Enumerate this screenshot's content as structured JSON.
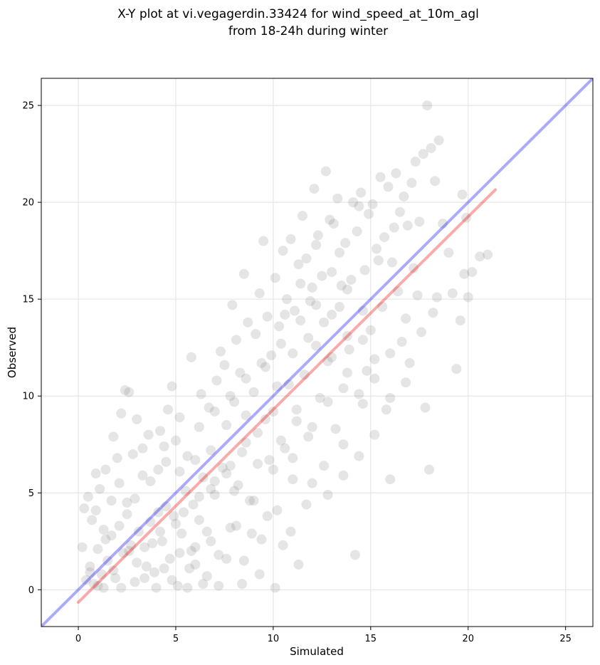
{
  "chart_data": {
    "type": "scatter",
    "title": "X-Y plot at vi.vegagerdin.33424 for wind_speed_at_10m_agl",
    "subtitle": "from 18-24h during winter",
    "xlabel": "Simulated",
    "ylabel": "Observed",
    "xlim": [
      -1.9,
      26.4
    ],
    "ylim": [
      -1.9,
      26.4
    ],
    "xticks": [
      0,
      5,
      10,
      15,
      20,
      25
    ],
    "yticks": [
      0,
      5,
      10,
      15,
      20,
      25
    ],
    "grid": true,
    "reference_line": {
      "color": "#0000ee",
      "x": [
        -1.9,
        26.4
      ],
      "y": [
        -1.9,
        26.4
      ]
    },
    "fit_line": {
      "color": "#ee0000",
      "x": [
        0.0,
        21.4
      ],
      "y": [
        -0.65,
        20.65
      ]
    },
    "point_color": "#7f7f7f",
    "points": [
      [
        0.4,
        0.5
      ],
      [
        0.6,
        1.2
      ],
      [
        0.8,
        0.3
      ],
      [
        1.0,
        2.1
      ],
      [
        1.2,
        0.8
      ],
      [
        0.3,
        4.2
      ],
      [
        0.5,
        4.8
      ],
      [
        0.7,
        3.6
      ],
      [
        0.9,
        6.0
      ],
      [
        1.1,
        5.2
      ],
      [
        1.3,
        0.1
      ],
      [
        1.5,
        1.5
      ],
      [
        1.7,
        2.8
      ],
      [
        1.9,
        0.6
      ],
      [
        2.1,
        3.3
      ],
      [
        2.3,
        1.9
      ],
      [
        2.5,
        4.5
      ],
      [
        2.7,
        2.3
      ],
      [
        2.9,
        0.4
      ],
      [
        3.1,
        3.0
      ],
      [
        1.4,
        6.2
      ],
      [
        1.8,
        7.9
      ],
      [
        2.2,
        9.1
      ],
      [
        2.4,
        10.3
      ],
      [
        2.6,
        10.2
      ],
      [
        3.0,
        8.8
      ],
      [
        3.3,
        7.3
      ],
      [
        3.5,
        1.2
      ],
      [
        3.7,
        5.6
      ],
      [
        3.9,
        0.9
      ],
      [
        4.1,
        4.0
      ],
      [
        4.3,
        2.5
      ],
      [
        4.5,
        6.6
      ],
      [
        4.7,
        1.6
      ],
      [
        4.9,
        3.8
      ],
      [
        5.1,
        0.2
      ],
      [
        5.3,
        2.9
      ],
      [
        5.5,
        5.1
      ],
      [
        5.7,
        1.1
      ],
      [
        5.9,
        4.4
      ],
      [
        4.2,
        8.2
      ],
      [
        4.6,
        9.3
      ],
      [
        4.8,
        10.5
      ],
      [
        5.0,
        7.7
      ],
      [
        5.2,
        8.9
      ],
      [
        5.6,
        6.9
      ],
      [
        5.8,
        12.0
      ],
      [
        6.0,
        2.2
      ],
      [
        6.2,
        3.6
      ],
      [
        6.4,
        5.8
      ],
      [
        6.6,
        0.7
      ],
      [
        6.8,
        7.2
      ],
      [
        7.0,
        4.9
      ],
      [
        7.2,
        1.8
      ],
      [
        7.4,
        6.3
      ],
      [
        7.6,
        8.5
      ],
      [
        7.8,
        3.2
      ],
      [
        8.0,
        9.7
      ],
      [
        8.2,
        5.4
      ],
      [
        8.4,
        0.3
      ],
      [
        6.3,
        10.1
      ],
      [
        6.7,
        9.4
      ],
      [
        7.1,
        10.8
      ],
      [
        7.3,
        12.3
      ],
      [
        7.5,
        11.6
      ],
      [
        7.9,
        14.7
      ],
      [
        8.1,
        12.9
      ],
      [
        8.3,
        11.2
      ],
      [
        8.5,
        16.3
      ],
      [
        8.7,
        13.8
      ],
      [
        8.6,
        7.6
      ],
      [
        8.8,
        4.6
      ],
      [
        9.0,
        10.2
      ],
      [
        9.2,
        8.1
      ],
      [
        9.4,
        2.6
      ],
      [
        9.6,
        11.5
      ],
      [
        9.8,
        6.7
      ],
      [
        10.0,
        9.2
      ],
      [
        10.2,
        4.1
      ],
      [
        10.4,
        12.7
      ],
      [
        9.1,
        13.2
      ],
      [
        9.3,
        15.3
      ],
      [
        9.5,
        18.0
      ],
      [
        9.7,
        14.1
      ],
      [
        9.9,
        12.1
      ],
      [
        10.1,
        16.1
      ],
      [
        10.3,
        13.6
      ],
      [
        10.5,
        17.5
      ],
      [
        10.7,
        15.0
      ],
      [
        10.9,
        18.1
      ],
      [
        10.6,
        7.3
      ],
      [
        10.8,
        10.6
      ],
      [
        11.0,
        5.7
      ],
      [
        11.2,
        8.7
      ],
      [
        11.4,
        13.9
      ],
      [
        11.6,
        11.1
      ],
      [
        11.8,
        7.9
      ],
      [
        12.0,
        15.6
      ],
      [
        12.2,
        12.6
      ],
      [
        12.4,
        9.9
      ],
      [
        11.1,
        14.4
      ],
      [
        11.3,
        16.8
      ],
      [
        11.5,
        19.3
      ],
      [
        11.7,
        17.1
      ],
      [
        11.9,
        14.9
      ],
      [
        12.1,
        20.7
      ],
      [
        12.3,
        18.3
      ],
      [
        12.5,
        16.2
      ],
      [
        12.7,
        21.6
      ],
      [
        12.9,
        19.1
      ],
      [
        12.6,
        6.4
      ],
      [
        12.8,
        11.8
      ],
      [
        13.0,
        14.2
      ],
      [
        13.2,
        8.3
      ],
      [
        13.4,
        17.4
      ],
      [
        13.6,
        10.4
      ],
      [
        13.8,
        13.1
      ],
      [
        14.0,
        16.0
      ],
      [
        14.2,
        1.8
      ],
      [
        14.4,
        19.8
      ],
      [
        13.1,
        18.9
      ],
      [
        13.3,
        20.2
      ],
      [
        13.5,
        15.7
      ],
      [
        13.7,
        17.9
      ],
      [
        13.9,
        12.4
      ],
      [
        14.1,
        20.0
      ],
      [
        14.3,
        18.5
      ],
      [
        14.5,
        20.5
      ],
      [
        14.7,
        16.5
      ],
      [
        14.9,
        19.4
      ],
      [
        14.6,
        9.6
      ],
      [
        14.8,
        11.3
      ],
      [
        15.0,
        13.4
      ],
      [
        15.2,
        10.9
      ],
      [
        15.4,
        17.0
      ],
      [
        15.6,
        14.6
      ],
      [
        15.8,
        9.3
      ],
      [
        16.0,
        12.2
      ],
      [
        16.2,
        18.7
      ],
      [
        16.4,
        15.4
      ],
      [
        15.1,
        19.9
      ],
      [
        15.3,
        17.6
      ],
      [
        15.5,
        21.3
      ],
      [
        15.7,
        18.2
      ],
      [
        15.9,
        20.8
      ],
      [
        16.1,
        16.9
      ],
      [
        16.3,
        21.5
      ],
      [
        16.5,
        19.5
      ],
      [
        16.7,
        20.3
      ],
      [
        16.9,
        18.8
      ],
      [
        16.6,
        12.8
      ],
      [
        16.8,
        14.0
      ],
      [
        17.0,
        11.7
      ],
      [
        17.2,
        16.6
      ],
      [
        17.4,
        15.2
      ],
      [
        17.6,
        13.3
      ],
      [
        17.8,
        9.4
      ],
      [
        18.0,
        6.2
      ],
      [
        18.2,
        14.3
      ],
      [
        18.4,
        15.1
      ],
      [
        17.1,
        21.0
      ],
      [
        17.3,
        22.1
      ],
      [
        17.5,
        19.0
      ],
      [
        17.7,
        22.5
      ],
      [
        17.9,
        25.0
      ],
      [
        18.1,
        22.8
      ],
      [
        18.3,
        21.1
      ],
      [
        18.5,
        23.2
      ],
      [
        18.7,
        18.9
      ],
      [
        19.0,
        17.4
      ],
      [
        19.2,
        15.3
      ],
      [
        19.4,
        11.4
      ],
      [
        19.6,
        13.9
      ],
      [
        19.8,
        16.3
      ],
      [
        20.0,
        15.1
      ],
      [
        20.2,
        16.4
      ],
      [
        20.6,
        17.2
      ],
      [
        21.0,
        17.3
      ],
      [
        19.7,
        20.4
      ],
      [
        19.9,
        19.2
      ],
      [
        0.2,
        2.2
      ],
      [
        0.6,
        0.9
      ],
      [
        1.0,
        0.2
      ],
      [
        1.4,
        2.6
      ],
      [
        1.8,
        1.0
      ],
      [
        2.2,
        0.1
      ],
      [
        2.6,
        2.0
      ],
      [
        3.0,
        1.4
      ],
      [
        3.4,
        0.6
      ],
      [
        3.8,
        2.4
      ],
      [
        4.0,
        0.1
      ],
      [
        4.4,
        1.1
      ],
      [
        4.8,
        0.5
      ],
      [
        5.2,
        1.9
      ],
      [
        5.6,
        0.1
      ],
      [
        6.0,
        1.3
      ],
      [
        6.4,
        0.3
      ],
      [
        6.8,
        2.5
      ],
      [
        7.2,
        0.2
      ],
      [
        7.6,
        1.6
      ],
      [
        0.9,
        4.1
      ],
      [
        1.3,
        3.1
      ],
      [
        1.7,
        4.6
      ],
      [
        2.1,
        5.5
      ],
      [
        2.5,
        3.9
      ],
      [
        2.9,
        4.7
      ],
      [
        3.3,
        5.9
      ],
      [
        3.7,
        3.5
      ],
      [
        4.1,
        6.2
      ],
      [
        4.5,
        4.3
      ],
      [
        2.0,
        6.8
      ],
      [
        2.8,
        7.0
      ],
      [
        3.6,
        8.0
      ],
      [
        4.4,
        7.4
      ],
      [
        5.2,
        6.1
      ],
      [
        6.0,
        6.7
      ],
      [
        6.8,
        5.2
      ],
      [
        7.6,
        6.0
      ],
      [
        8.4,
        7.1
      ],
      [
        9.2,
        6.5
      ],
      [
        8.1,
        3.3
      ],
      [
        8.5,
        1.5
      ],
      [
        8.9,
        2.9
      ],
      [
        9.3,
        0.8
      ],
      [
        9.7,
        3.8
      ],
      [
        10.1,
        0.1
      ],
      [
        10.5,
        2.3
      ],
      [
        10.9,
        3.0
      ],
      [
        11.3,
        1.3
      ],
      [
        11.7,
        4.4
      ],
      [
        8.0,
        5.1
      ],
      [
        9.0,
        4.6
      ],
      [
        10.0,
        6.2
      ],
      [
        11.0,
        6.8
      ],
      [
        12.0,
        5.5
      ],
      [
        12.8,
        4.9
      ],
      [
        13.6,
        5.9
      ],
      [
        14.4,
        6.9
      ],
      [
        15.2,
        8.0
      ],
      [
        16.0,
        5.7
      ],
      [
        9.6,
        8.8
      ],
      [
        10.4,
        7.7
      ],
      [
        11.2,
        9.3
      ],
      [
        12.0,
        8.4
      ],
      [
        12.8,
        9.7
      ],
      [
        13.6,
        7.5
      ],
      [
        14.4,
        10.1
      ],
      [
        15.2,
        11.9
      ],
      [
        16.0,
        9.9
      ],
      [
        16.8,
        10.7
      ],
      [
        6.2,
        8.4
      ],
      [
        7.0,
        9.2
      ],
      [
        7.8,
        10.0
      ],
      [
        8.6,
        10.9
      ],
      [
        9.4,
        11.7
      ],
      [
        10.2,
        10.5
      ],
      [
        11.0,
        12.2
      ],
      [
        11.8,
        13.0
      ],
      [
        12.6,
        13.8
      ],
      [
        13.4,
        14.6
      ],
      [
        5.4,
        4.0
      ],
      [
        6.2,
        4.8
      ],
      [
        7.0,
        5.6
      ],
      [
        7.8,
        6.4
      ],
      [
        8.6,
        9.0
      ],
      [
        3.4,
        2.2
      ],
      [
        4.2,
        3.0
      ],
      [
        5.0,
        3.4
      ],
      [
        5.8,
        2.0
      ],
      [
        6.6,
        3.0
      ],
      [
        12.2,
        17.8
      ],
      [
        13.0,
        16.4
      ],
      [
        13.8,
        15.5
      ],
      [
        14.6,
        14.4
      ],
      [
        10.6,
        14.2
      ],
      [
        11.4,
        15.8
      ],
      [
        12.2,
        14.7
      ],
      [
        13.0,
        12.0
      ],
      [
        13.8,
        11.2
      ],
      [
        14.6,
        12.9
      ]
    ]
  }
}
